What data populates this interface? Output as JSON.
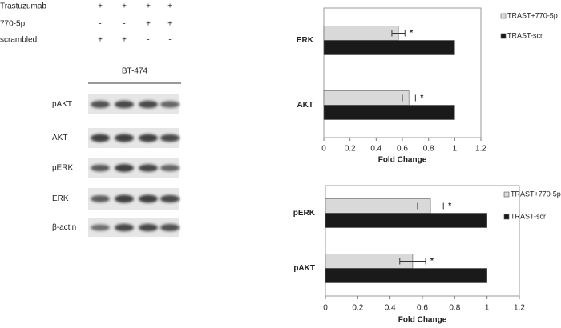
{
  "treatments": {
    "rows": [
      {
        "label": "Trastuzumab",
        "signs": [
          "+",
          "+",
          "+",
          "+"
        ]
      },
      {
        "label": "770-5p",
        "signs": [
          "-",
          "-",
          "+",
          "+"
        ]
      },
      {
        "label": "scrambled",
        "signs": [
          "+",
          "+",
          "-",
          "-"
        ]
      }
    ]
  },
  "blot": {
    "cell_line": "BT-474",
    "proteins": [
      "pAKT",
      "AKT",
      "pERK",
      "ERK",
      "β-actin"
    ]
  },
  "chart_data": [
    {
      "type": "bar",
      "orientation": "horizontal",
      "categories": [
        "ERK",
        "AKT"
      ],
      "x_label": "Fold Change",
      "xlim": [
        0,
        1.2
      ],
      "xticks": [
        0,
        0.2,
        0.4,
        0.6,
        0.8,
        1,
        1.2
      ],
      "series": [
        {
          "name": "TRAST+770-5p",
          "color": "#d9d9d9",
          "values": [
            0.57,
            0.65
          ],
          "errors": [
            0.05,
            0.05
          ],
          "significance": [
            "*",
            "*"
          ]
        },
        {
          "name": "TRAST-scr",
          "color": "#1a1a1a",
          "values": [
            1,
            1
          ]
        }
      ]
    },
    {
      "type": "bar",
      "orientation": "horizontal",
      "categories": [
        "pERK",
        "pAKT"
      ],
      "x_label": "Fold Change",
      "xlim": [
        0,
        1.2
      ],
      "xticks": [
        0,
        0.2,
        0.4,
        0.6,
        0.8,
        1,
        1.2
      ],
      "series": [
        {
          "name": "TRAST+770-5p",
          "color": "#d9d9d9",
          "values": [
            0.65,
            0.54
          ],
          "errors": [
            0.08,
            0.08
          ],
          "significance": [
            "*",
            "*"
          ]
        },
        {
          "name": "TRAST-scr",
          "color": "#1a1a1a",
          "values": [
            1,
            1
          ]
        }
      ]
    }
  ]
}
